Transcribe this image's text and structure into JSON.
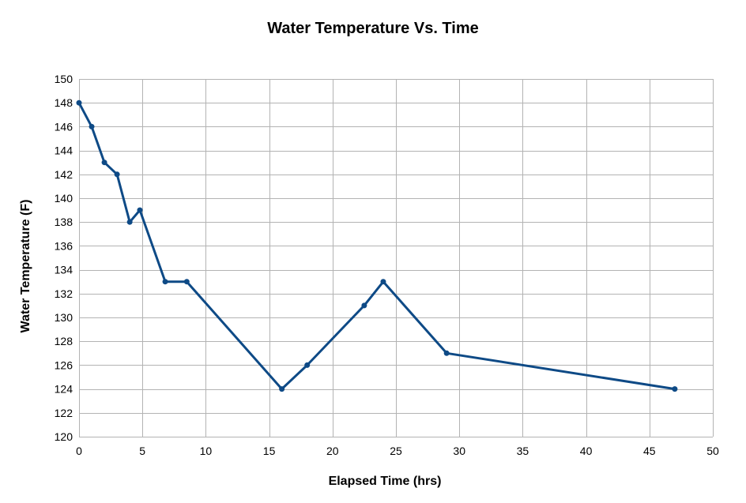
{
  "chart_data": {
    "type": "scatter",
    "title": "Water Temperature Vs. Time",
    "xlabel": "Elapsed Time  (hrs)",
    "ylabel": "Water Temperature (F)",
    "xlim": [
      0,
      50
    ],
    "ylim": [
      120,
      150
    ],
    "x_ticks": [
      0,
      5,
      10,
      15,
      20,
      25,
      30,
      35,
      40,
      45,
      50
    ],
    "y_ticks": [
      120,
      122,
      124,
      126,
      128,
      130,
      132,
      134,
      136,
      138,
      140,
      142,
      144,
      146,
      148,
      150
    ],
    "grid": true,
    "legend": "none",
    "series": [
      {
        "style": "line-with-markers",
        "color": "#0e4a86",
        "x": [
          0,
          1,
          2,
          3,
          4,
          4.8,
          6.8,
          8.5,
          16,
          18,
          22.5,
          24,
          29,
          47
        ],
        "y": [
          148,
          146,
          143,
          142,
          138,
          139,
          133,
          133,
          124,
          126,
          131,
          133,
          127,
          124
        ]
      }
    ]
  }
}
